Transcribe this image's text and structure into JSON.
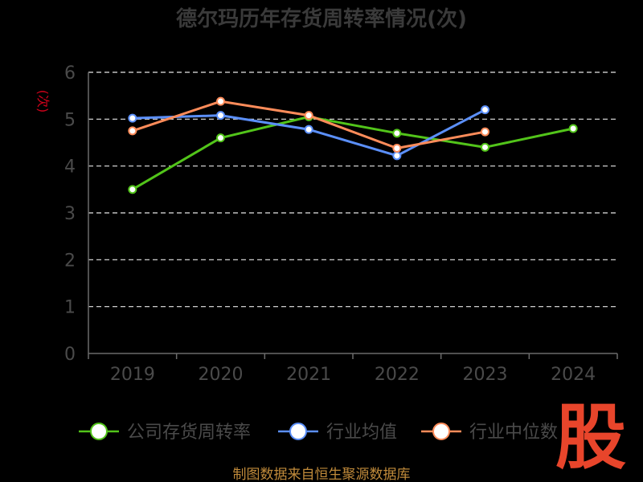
{
  "chart_data": {
    "type": "line",
    "title": "德尔玛历年存货周转率情况(次)",
    "ylabel": "(次)",
    "xlabel": "",
    "categories": [
      "2019",
      "2020",
      "2021",
      "2022",
      "2023",
      "2024"
    ],
    "ylim": [
      0,
      6
    ],
    "yticks": [
      "0",
      "1",
      "2",
      "3",
      "4",
      "5",
      "6"
    ],
    "grid": true,
    "legend_position": "bottom",
    "series": [
      {
        "name": "公司存货周转率",
        "color": "#52c41a",
        "values": [
          3.5,
          4.6,
          5.05,
          4.7,
          4.4,
          4.8
        ]
      },
      {
        "name": "行业均值",
        "color": "#5b8ff9",
        "values": [
          5.02,
          5.08,
          4.78,
          4.22,
          5.2,
          null
        ]
      },
      {
        "name": "行业中位数",
        "color": "#ff8c5a",
        "values": [
          4.75,
          5.38,
          5.08,
          4.38,
          4.73,
          null
        ]
      }
    ]
  },
  "source": "制图数据来自恒生聚源数据库",
  "watermark": "股"
}
